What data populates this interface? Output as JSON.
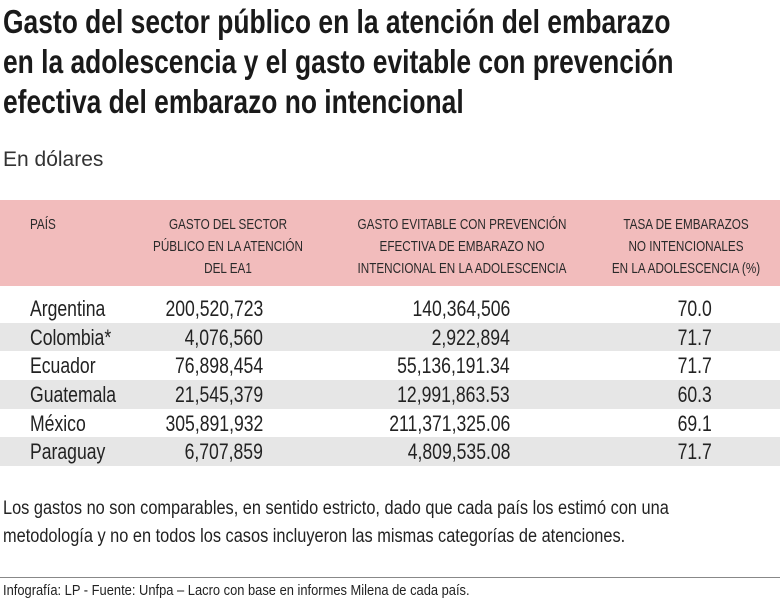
{
  "title_lines": [
    "Gasto del sector público en la atención del embarazo",
    "en la adolescencia y el gasto evitable con prevención",
    "efectiva del embarazo no intencional"
  ],
  "subtitle": "En dólares",
  "table": {
    "headers": [
      [
        "PAÍS"
      ],
      [
        "GASTO DEL SECTOR",
        "PÚBLICO EN LA ATENCIÓN",
        "DEL EA1"
      ],
      [
        "GASTO EVITABLE CON PREVENCIÓN",
        "EFECTIVA DE EMBARAZO NO",
        "INTENCIONAL EN LA ADOLESCENCIA"
      ],
      [
        "TASA DE EMBARAZOS",
        "NO INTENCIONALES",
        "EN LA ADOLESCENCIA (%)"
      ]
    ],
    "rows": [
      [
        "Argentina",
        "200,520,723",
        "140,364,506",
        "70.0"
      ],
      [
        "Colombia*",
        "4,076,560",
        "2,922,894",
        "71.7"
      ],
      [
        "Ecuador",
        "76,898,454",
        "55,136,191.34",
        "71.7"
      ],
      [
        "Guatemala",
        "21,545,379",
        "12,991,863.53",
        "60.3"
      ],
      [
        "México",
        "305,891,932",
        "211,371,325.06",
        "69.1"
      ],
      [
        "Paraguay",
        "6,707,859",
        "4,809,535.08",
        "71.7"
      ]
    ]
  },
  "note_lines": [
    "Los gastos no son comparables, en sentido estricto, dado que cada país los estimó con una",
    "metodología y no en todos los casos incluyeron las mismas categorías de atenciones."
  ],
  "source": "Infografía: LP - Fuente: Unfpa – Lacro con base en informes Milena de cada país.",
  "colors": {
    "header_bg": "#f2bcbc",
    "alt_row_bg": "#e6e6e6"
  }
}
